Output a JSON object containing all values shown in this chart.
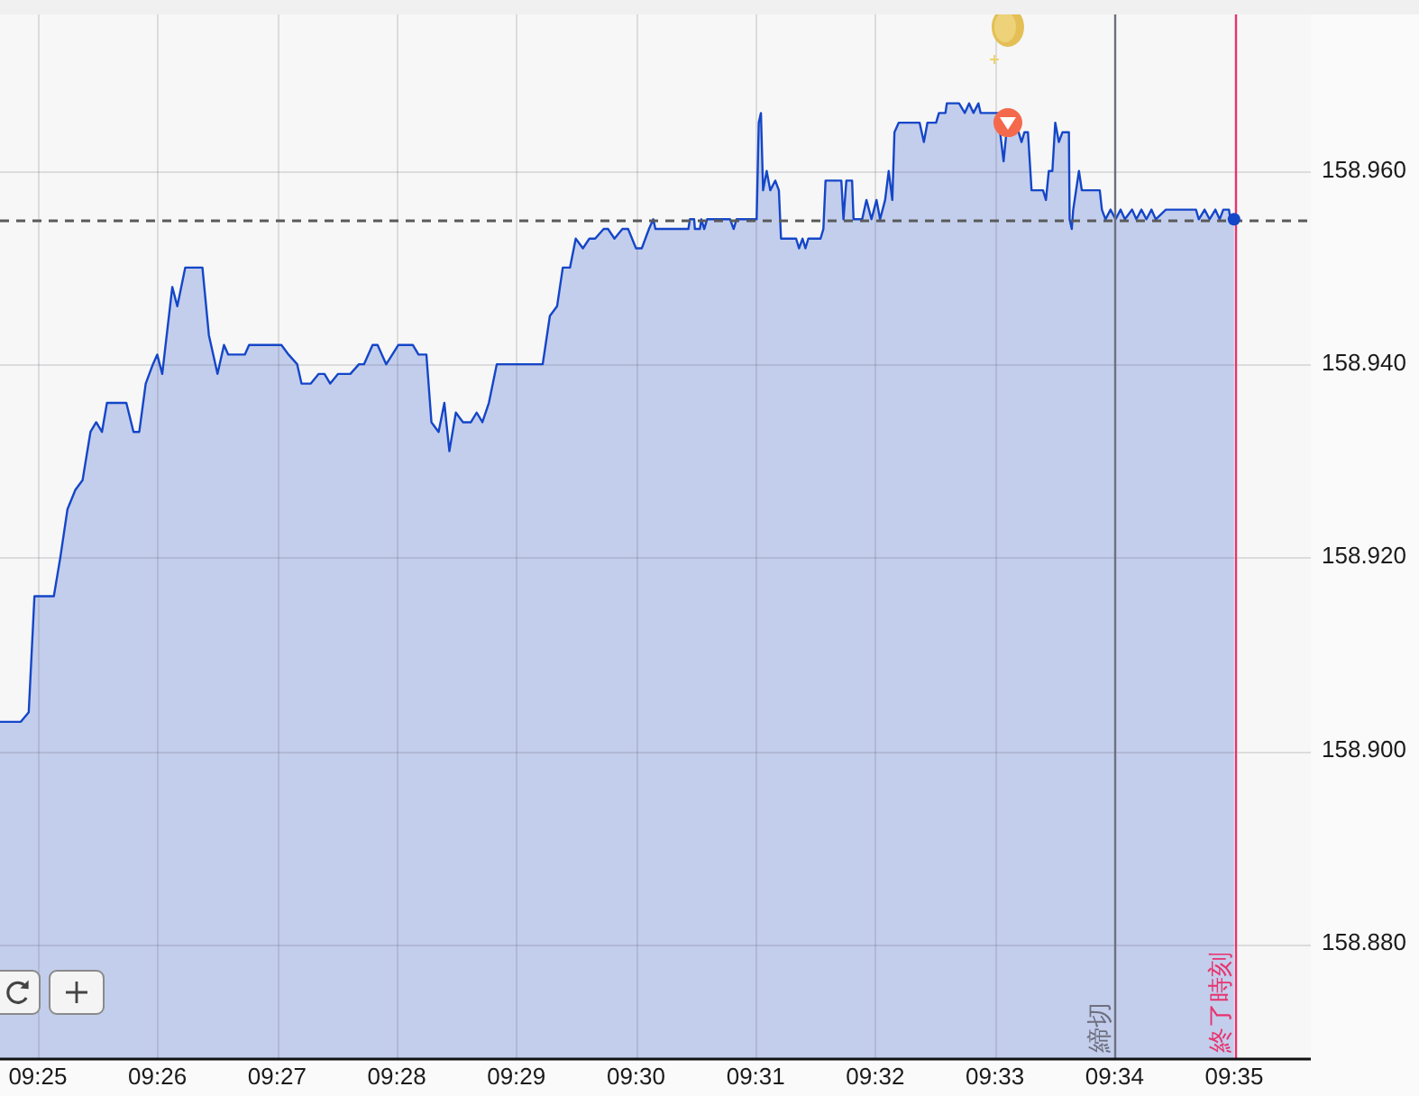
{
  "chart_data": {
    "type": "area",
    "xlim": [
      9.4114,
      9.594
    ],
    "ylim": [
      158.8682,
      158.9762
    ],
    "grid": true,
    "xticks": [
      {
        "value": 9.41667,
        "label": "09:25"
      },
      {
        "value": 9.43333,
        "label": "09:26"
      },
      {
        "value": 9.45,
        "label": "09:27"
      },
      {
        "value": 9.46667,
        "label": "09:28"
      },
      {
        "value": 9.48333,
        "label": "09:29"
      },
      {
        "value": 9.5,
        "label": "09:30"
      },
      {
        "value": 9.51667,
        "label": "09:31"
      },
      {
        "value": 9.53333,
        "label": "09:32"
      },
      {
        "value": 9.55,
        "label": "09:33"
      },
      {
        "value": 9.56667,
        "label": "09:34"
      },
      {
        "value": 9.58333,
        "label": "09:35"
      }
    ],
    "yticks": [
      {
        "value": 158.88,
        "label": "158.880"
      },
      {
        "value": 158.9,
        "label": "158.900"
      },
      {
        "value": 158.92,
        "label": "158.920"
      },
      {
        "value": 158.94,
        "label": "158.940"
      },
      {
        "value": 158.96,
        "label": "158.960"
      }
    ],
    "ref_lines": [
      {
        "axis": "y",
        "value": 158.955,
        "line_style": "dashed"
      },
      {
        "axis": "x",
        "value": 9.56667,
        "label": "締切",
        "color": "#6e7080"
      },
      {
        "axis": "x",
        "value": 9.58333,
        "label": "終了時刻",
        "color": "#e8336d"
      }
    ],
    "series": [
      {
        "color": "#1446c8",
        "x": [
          9.4114,
          9.4143,
          9.4154,
          9.4162,
          9.4189,
          9.4198,
          9.4208,
          9.4219,
          9.4229,
          9.424,
          9.4248,
          9.4256,
          9.4263,
          9.429,
          9.43,
          9.4308,
          9.4317,
          9.4327,
          9.4333,
          9.434,
          9.4354,
          9.4361,
          9.4372,
          9.4396,
          9.4405,
          9.4417,
          9.4426,
          9.4432,
          9.4455,
          9.4461,
          9.4506,
          9.4516,
          9.4528,
          9.4534,
          9.4547,
          9.4558,
          9.4566,
          9.4574,
          9.4585,
          9.4602,
          9.4614,
          9.4621,
          9.4633,
          9.464,
          9.4652,
          9.4669,
          9.4689,
          9.4697,
          9.4708,
          9.4715,
          9.4725,
          9.4733,
          9.474,
          9.4749,
          9.4759,
          9.477,
          9.4778,
          9.4786,
          9.4795,
          9.4806,
          9.487,
          9.488,
          9.489,
          9.4898,
          9.4908,
          9.4916,
          9.4926,
          9.4935,
          9.4943,
          9.4955,
          9.4961,
          9.497,
          9.4981,
          9.4989,
          9.5,
          9.5008,
          9.5018,
          9.5024,
          9.5027,
          9.5073,
          9.5075,
          9.5081,
          9.5082,
          9.5089,
          9.5091,
          9.5095,
          9.5099,
          9.5131,
          9.5136,
          9.514,
          9.5168,
          9.5171,
          9.5174,
          9.5177,
          9.5182,
          9.5187,
          9.5194,
          9.5199,
          9.5202,
          9.5223,
          9.5227,
          9.5232,
          9.5236,
          9.524,
          9.5257,
          9.5261,
          9.5264,
          9.5286,
          9.5289,
          9.5293,
          9.5301,
          9.5303,
          9.5315,
          9.5321,
          9.5328,
          9.5335,
          9.534,
          9.5347,
          9.5352,
          9.5357,
          9.536,
          9.5366,
          9.5395,
          9.5401,
          9.5406,
          9.5418,
          9.5422,
          9.5431,
          9.5433,
          9.545,
          9.5458,
          9.5464,
          9.547,
          9.5477,
          9.548,
          9.5504,
          9.5512,
          9.5516,
          9.5533,
          9.5537,
          9.5541,
          9.5546,
          9.5551,
          9.5567,
          9.5571,
          9.5575,
          9.558,
          9.5584,
          9.5589,
          9.5594,
          9.5603,
          9.5604,
          9.5607,
          9.5609,
          9.5617,
          9.5621,
          9.5646,
          9.5649,
          9.5654,
          9.5661,
          9.5668,
          9.5675,
          9.5681,
          9.5691,
          9.5697,
          9.5704,
          9.5711,
          9.5718,
          9.5724,
          9.5738,
          9.578,
          9.5784,
          9.5792,
          9.5799,
          9.5807,
          9.5813,
          9.5818,
          9.5826,
          9.5828,
          9.5833
        ],
        "values": [
          158.903,
          158.903,
          158.904,
          158.916,
          158.916,
          158.92,
          158.925,
          158.927,
          158.928,
          158.933,
          158.934,
          158.933,
          158.936,
          158.936,
          158.933,
          158.933,
          158.938,
          158.94,
          158.941,
          158.939,
          158.948,
          158.946,
          158.95,
          158.95,
          158.943,
          158.939,
          158.942,
          158.941,
          158.941,
          158.942,
          158.942,
          158.941,
          158.94,
          158.938,
          158.938,
          158.939,
          158.939,
          158.938,
          158.939,
          158.939,
          158.94,
          158.94,
          158.942,
          158.942,
          158.94,
          158.942,
          158.942,
          158.941,
          158.941,
          158.934,
          158.933,
          158.936,
          158.931,
          158.935,
          158.934,
          158.934,
          158.935,
          158.934,
          158.936,
          158.94,
          158.94,
          158.945,
          158.946,
          158.95,
          158.95,
          158.953,
          158.952,
          158.953,
          158.953,
          158.954,
          158.954,
          158.953,
          158.954,
          158.954,
          158.952,
          158.952,
          158.954,
          158.955,
          158.954,
          158.954,
          158.955,
          158.955,
          158.954,
          158.954,
          158.955,
          158.954,
          158.955,
          158.955,
          158.954,
          158.955,
          158.955,
          158.965,
          158.966,
          158.958,
          158.96,
          158.958,
          158.959,
          158.958,
          158.953,
          158.953,
          158.952,
          158.953,
          158.952,
          158.953,
          158.953,
          158.954,
          158.959,
          158.959,
          158.955,
          158.959,
          158.959,
          158.955,
          158.955,
          158.957,
          158.955,
          158.957,
          158.955,
          158.957,
          158.96,
          158.957,
          158.964,
          158.965,
          158.965,
          158.963,
          158.965,
          158.965,
          158.966,
          158.966,
          158.967,
          158.967,
          158.966,
          158.967,
          158.966,
          158.967,
          158.966,
          158.966,
          158.961,
          158.964,
          158.964,
          158.963,
          158.964,
          158.964,
          158.958,
          158.958,
          158.957,
          158.96,
          158.96,
          158.965,
          158.963,
          158.964,
          158.964,
          158.955,
          158.954,
          158.956,
          158.96,
          158.958,
          158.958,
          158.956,
          158.955,
          158.956,
          158.955,
          158.956,
          158.955,
          158.956,
          158.955,
          158.956,
          158.955,
          158.956,
          158.955,
          158.956,
          158.956,
          158.955,
          158.956,
          158.955,
          158.956,
          158.955,
          158.956,
          158.956,
          158.955,
          158.955
        ]
      },
      {
        "type": "scatter",
        "color": "#f4694c",
        "marker": "circle",
        "x": [
          9.5518
        ],
        "values": [
          158.965
        ]
      },
      {
        "type": "line",
        "color": "#1446c8",
        "marker": "circle",
        "x": [
          9.5833
        ],
        "values": [
          158.955
        ]
      }
    ]
  }
}
